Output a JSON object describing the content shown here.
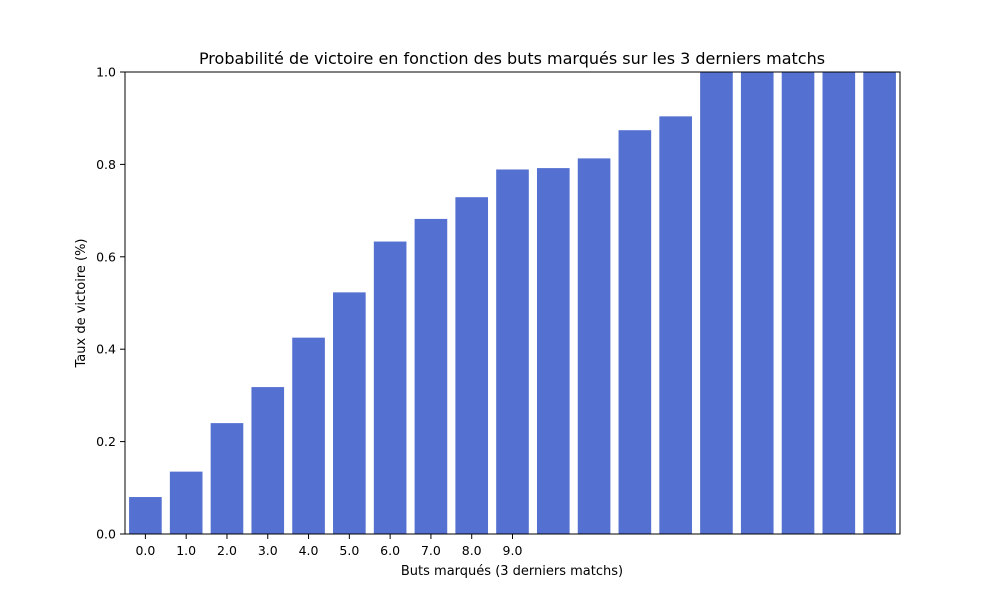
{
  "chart_data": {
    "type": "bar",
    "title": "Probabilité de victoire en fonction des buts marqués sur les 3 derniers matchs",
    "xlabel": "Buts marqués (3 derniers matchs)",
    "ylabel": "Taux de victoire (%)",
    "x_tick_labels": [
      "0.0",
      "1.0",
      "2.0",
      "3.0",
      "4.0",
      "5.0",
      "6.0",
      "7.0",
      "8.0",
      "9.0"
    ],
    "values": [
      0.08,
      0.135,
      0.24,
      0.318,
      0.425,
      0.523,
      0.633,
      0.682,
      0.729,
      0.789,
      0.792,
      0.813,
      0.874,
      0.904,
      1.0,
      1.0,
      1.0,
      1.0,
      1.0
    ],
    "ylim": [
      0,
      1.0
    ],
    "y_ticks": [
      "0.0",
      "0.2",
      "0.4",
      "0.6",
      "0.8",
      "1.0"
    ],
    "bar_color": "#5470d0",
    "grid": false,
    "legend": "none"
  }
}
